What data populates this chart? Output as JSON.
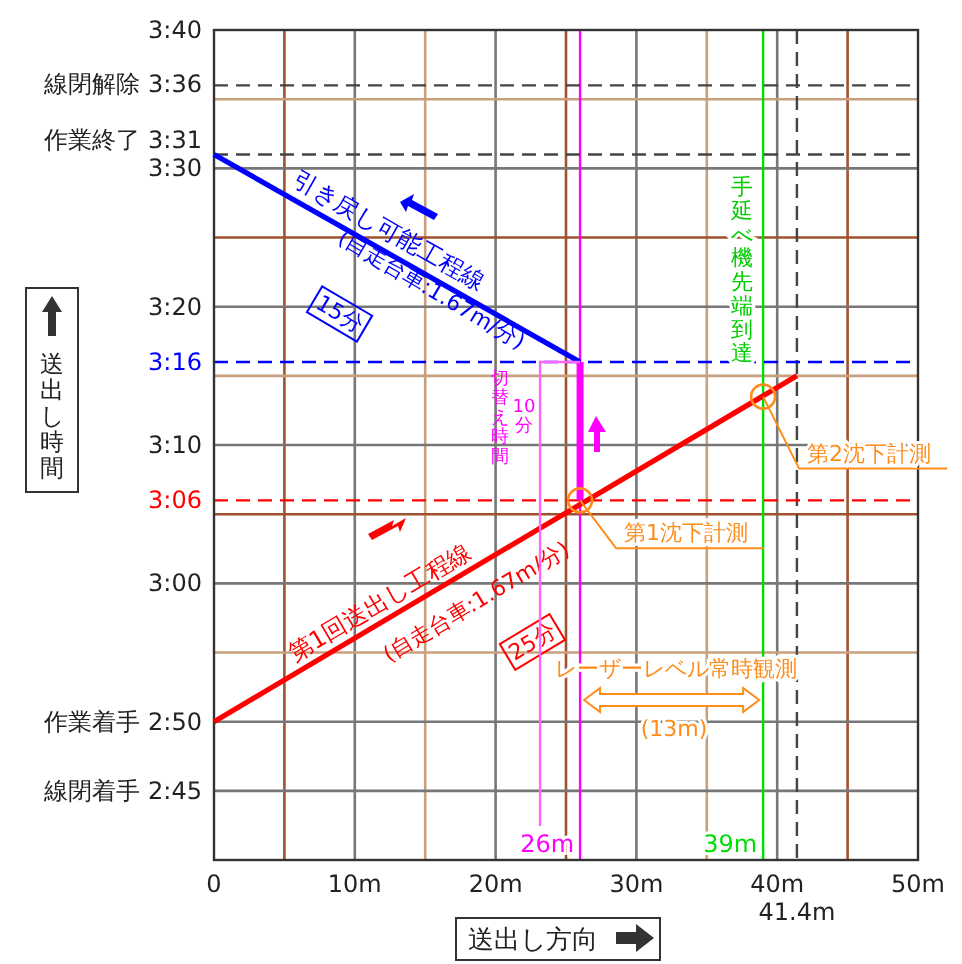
{
  "chart_data": {
    "type": "line",
    "xlabel": "送出し方向",
    "ylabel": "送出し時間",
    "xlim": [
      0,
      50
    ],
    "ylim": [
      2.6667,
      3.6667
    ],
    "xticks": [
      0,
      {
        "value": 5,
        "label": null
      },
      {
        "value": 10,
        "label": "10m"
      },
      {
        "value": 15,
        "label": null
      },
      {
        "value": 20,
        "label": "20m"
      },
      {
        "value": 25,
        "label": null
      },
      {
        "value": 30,
        "label": "30m"
      },
      {
        "value": 35,
        "label": null
      },
      {
        "value": 40,
        "label": "40m"
      },
      {
        "value": 45,
        "label": null
      },
      {
        "value": 50,
        "label": "50m"
      }
    ],
    "yticks": [
      {
        "value": 2.75,
        "label": "線閉着手 2:45"
      },
      {
        "value": 2.8333,
        "label": "作業着手 2:50"
      },
      {
        "value": 2.9167,
        "label": null
      },
      {
        "value": 3,
        "label": "3:00"
      },
      {
        "value": 3.0833,
        "label": null
      },
      {
        "value": 3.1667,
        "label": "3:10"
      },
      {
        "value": 3.25,
        "label": null
      },
      {
        "value": 3.3333,
        "label": "3:20"
      },
      {
        "value": 3.4167,
        "label": null
      },
      {
        "value": 3.5,
        "label": "3:30"
      },
      {
        "value": 3.5833,
        "label": null
      },
      {
        "value": 3.6667,
        "label": "3:40"
      }
    ],
    "grid": true,
    "series": [
      {
        "name": "引き戻し可能工程線",
        "color": "#0000ff",
        "x": [
          0,
          26
        ],
        "values": [
          3.5167,
          3.2667
        ]
      },
      {
        "name": "第1回送出し工程線",
        "color": "#ff0000",
        "x": [
          0,
          41.4
        ],
        "values": [
          2.8333,
          3.25
        ]
      },
      {
        "color": "#ff00ff",
        "x": [
          26,
          26
        ],
        "values": [
          3.1,
          3.2667
        ]
      },
      {
        "type": "scatter",
        "marker": "circle",
        "color": "#ff8c1a",
        "x": [
          26,
          39
        ],
        "values": [
          3.1,
          3.225
        ]
      }
    ],
    "ref_lines": [
      {
        "axis": "x",
        "value": 26,
        "label": "26m",
        "color": "#ff00ff",
        "line_style": "solid"
      },
      {
        "axis": "x",
        "value": 39,
        "label": "39m",
        "color": "#00dd00",
        "line_style": "solid"
      },
      {
        "axis": "x",
        "value": 41.4,
        "label": "41.4m",
        "color": "#444444",
        "line_style": "dashed"
      },
      {
        "axis": "y",
        "value": 3.6,
        "color": "#444444",
        "line_style": "dashed"
      },
      {
        "axis": "y",
        "value": 3.5167,
        "color": "#444444",
        "line_style": "dashed"
      },
      {
        "axis": "y",
        "value": 3.2667,
        "label": "3:16",
        "color": "#0000ff",
        "line_style": "dashed"
      },
      {
        "axis": "y",
        "value": 3.1,
        "label": "3:06",
        "color": "#ff0000",
        "line_style": "dashed"
      }
    ],
    "annotations": [
      "(自走台車:1.67m/分)",
      "15分",
      "(自走台車:1.67m/分)",
      "25分",
      "切替え時間",
      "10分",
      "手延べ機先端到達",
      "レーザーレベル常時観測",
      "(13m)",
      {
        "text": "第1沈下計測",
        "x": 26,
        "y": 3.1
      },
      {
        "text": "第2沈下計測",
        "x": 39,
        "y": 3.225
      },
      "線閉解除 3:36",
      "作業終了 3:31"
    ]
  }
}
